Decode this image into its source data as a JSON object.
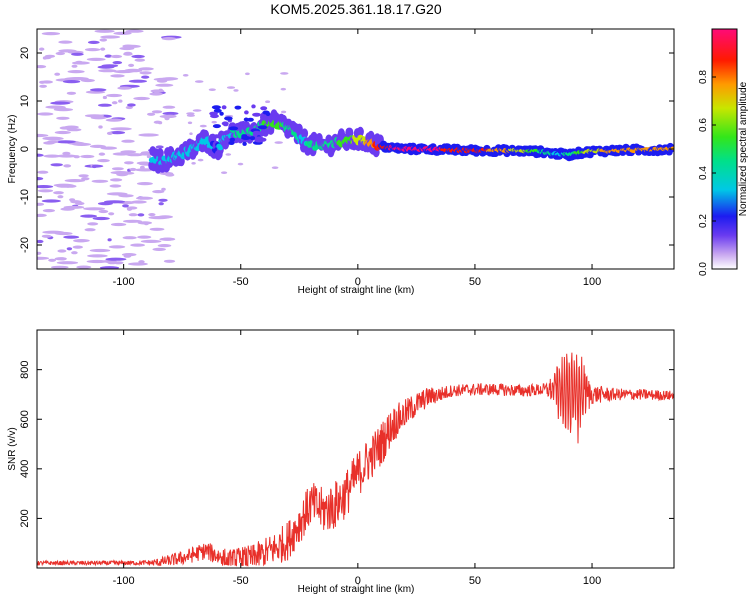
{
  "title": "KOM5.2025.361.18.17.G20",
  "chart_data": [
    {
      "type": "heatmap",
      "name": "spectrogram",
      "title": "KOM5.2025.361.18.17.G20",
      "xlabel": "Height of straight line (km)",
      "ylabel": "Frequency (Hz)",
      "xlim": [
        -137,
        135
      ],
      "ylim": [
        -25,
        25
      ],
      "xticks": [
        -100,
        -50,
        0,
        50,
        100
      ],
      "xtick_labels": [
        "-100",
        "-50",
        "0",
        "50",
        "100"
      ],
      "yticks": [
        -20,
        -10,
        0,
        10,
        20
      ],
      "ytick_labels": [
        "-20",
        "-10",
        "0",
        "10",
        "20"
      ],
      "ridge": {
        "x": [
          -88,
          -85,
          -80,
          -75,
          -70,
          -65,
          -60,
          -56,
          -52,
          -48,
          -44,
          -40,
          -36,
          -32,
          -28,
          -24,
          -20,
          -16,
          -12,
          -8,
          -4,
          0,
          5,
          10,
          20,
          30,
          40,
          50,
          60,
          70,
          80,
          85,
          90,
          95,
          100,
          110,
          120,
          130,
          135
        ],
        "y": [
          -2,
          -2.5,
          -2,
          -1,
          0,
          2,
          0,
          3,
          3.5,
          3,
          4,
          5,
          5.5,
          5,
          4,
          2,
          1,
          0.5,
          1,
          1.5,
          1.8,
          2,
          1.5,
          0.5,
          0,
          0,
          -0.2,
          -0.3,
          -0.3,
          -0.4,
          -0.6,
          -1,
          -1.2,
          -0.8,
          -0.5,
          -0.3,
          -0.2,
          -0.1,
          0
        ],
        "amplitude": [
          0.25,
          0.3,
          0.25,
          0.25,
          0.3,
          0.25,
          0.2,
          0.3,
          0.35,
          0.35,
          0.4,
          0.45,
          0.5,
          0.45,
          0.4,
          0.3,
          0.35,
          0.4,
          0.35,
          0.45,
          0.5,
          0.6,
          0.7,
          0.85,
          0.9,
          0.9,
          0.85,
          0.8,
          0.75,
          0.6,
          0.4,
          0.3,
          0.35,
          0.5,
          0.65,
          0.7,
          0.75,
          0.75,
          0.7
        ]
      },
      "colorbar": {
        "label": "Normalized spectral amplitude",
        "ticks": [
          0.0,
          0.2,
          0.4,
          0.6,
          0.8
        ],
        "tick_labels": [
          "0.0",
          "0.2",
          "0.4",
          "0.6",
          "0.8"
        ],
        "range": [
          0,
          1
        ]
      }
    },
    {
      "type": "line",
      "name": "snr",
      "xlabel": "Height of straight line (km)",
      "ylabel": "SNR (v/v)",
      "xlim": [
        -137,
        135
      ],
      "ylim": [
        0,
        960
      ],
      "xticks": [
        -100,
        -50,
        0,
        50,
        100
      ],
      "xtick_labels": [
        "-100",
        "-50",
        "0",
        "50",
        "100"
      ],
      "yticks": [
        200,
        400,
        600,
        800
      ],
      "ytick_labels": [
        "200",
        "400",
        "600",
        "800"
      ],
      "color": "#e8302a",
      "anchors": {
        "x": [
          -137,
          -100,
          -85,
          -75,
          -65,
          -55,
          -45,
          -35,
          -30,
          -25,
          -20,
          -15,
          -10,
          -5,
          0,
          5,
          10,
          15,
          20,
          25,
          30,
          35,
          40,
          50,
          60,
          70,
          80,
          85,
          90,
          95,
          100,
          110,
          120,
          135
        ],
        "y": [
          20,
          20,
          22,
          40,
          70,
          30,
          40,
          80,
          110,
          180,
          260,
          230,
          250,
          300,
          380,
          440,
          500,
          580,
          620,
          660,
          690,
          700,
          715,
          720,
          720,
          715,
          720,
          720,
          700,
          700,
          700,
          700,
          700,
          695
        ]
      },
      "noise": {
        "x": [
          -137,
          -90,
          -80,
          -60,
          -40,
          -30,
          -10,
          10,
          20,
          30,
          40,
          80,
          85,
          90,
          95,
          100,
          110,
          135
        ],
        "amp": [
          8,
          10,
          25,
          40,
          60,
          80,
          100,
          90,
          60,
          40,
          25,
          25,
          80,
          180,
          150,
          40,
          25,
          20
        ]
      }
    }
  ]
}
